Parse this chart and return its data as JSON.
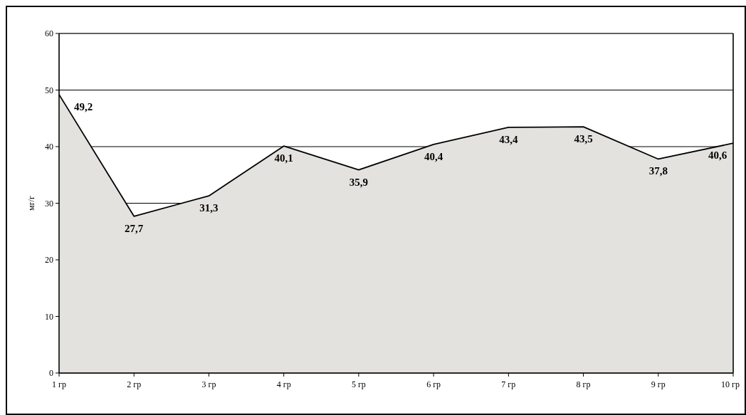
{
  "chart_data": {
    "type": "area",
    "ylabel": "мг/г",
    "categories": [
      "1 гр",
      "2 гр",
      "3 гр",
      "4 гр",
      "5 гр",
      "6 гр",
      "7 гр",
      "8 гр",
      "9 гр",
      "10 гр"
    ],
    "series": [
      {
        "color": "#e4e2de",
        "values": [
          49.2,
          27.7,
          31.3,
          40.1,
          35.9,
          40.4,
          43.4,
          43.5,
          37.8,
          40.6
        ],
        "value_labels": [
          "49,2",
          "27,7",
          "31,3",
          "40,1",
          "35,9",
          "40,4",
          "43,4",
          "43,5",
          "37,8",
          "40,6"
        ]
      }
    ],
    "ylim": [
      0,
      60
    ],
    "yticks": [
      0,
      10,
      20,
      30,
      40,
      50,
      60
    ],
    "grid": "y"
  }
}
